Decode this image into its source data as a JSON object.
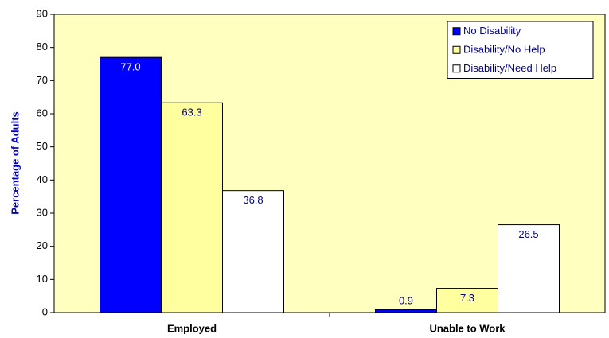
{
  "chart_data": {
    "type": "bar",
    "y_label": "Percentage of Adults",
    "categories": [
      "Employed",
      "Unable to Work"
    ],
    "series": [
      {
        "name": "No Disability",
        "color": "#0000ff",
        "values": [
          77.0,
          0.9
        ],
        "value_labels": [
          "77.0",
          "0.9"
        ]
      },
      {
        "name": "Disability/No Help",
        "color": "#ffffa0",
        "values": [
          63.3,
          7.3
        ],
        "value_labels": [
          "63.3",
          "7.3"
        ]
      },
      {
        "name": "Disability/Need Help",
        "color": "#ffffff",
        "values": [
          36.8,
          26.5
        ],
        "value_labels": [
          "36.8",
          "26.5"
        ]
      }
    ],
    "ylim": [
      0,
      90
    ],
    "yticks": [
      0,
      10,
      20,
      30,
      40,
      50,
      60,
      70,
      80,
      90
    ],
    "legend": "upper right",
    "plot_background": "#ffffc0"
  }
}
